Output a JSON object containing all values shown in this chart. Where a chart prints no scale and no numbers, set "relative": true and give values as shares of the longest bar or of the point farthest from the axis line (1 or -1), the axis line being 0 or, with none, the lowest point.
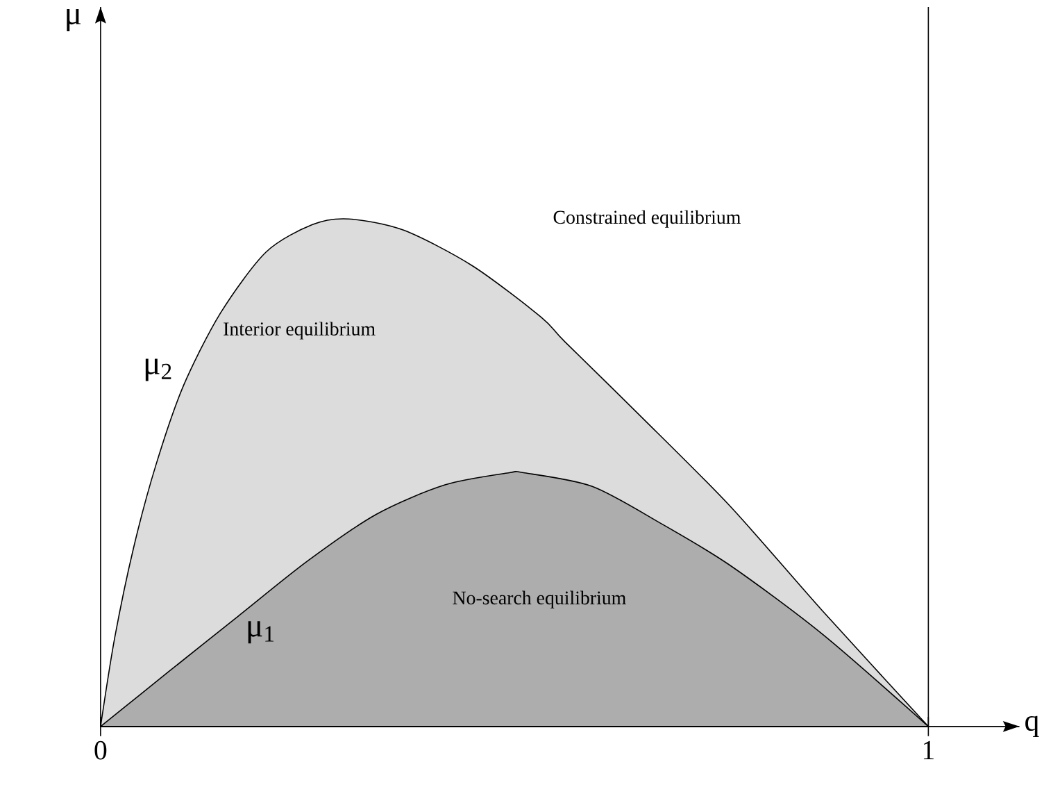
{
  "chart_data": {
    "type": "area",
    "relative": true,
    "xlabel": "q",
    "xlim": [
      0,
      1.11
    ],
    "xticks": [
      0,
      1
    ],
    "grid": false,
    "series": [
      {
        "name": "μ$_{2}$",
        "color": "#dcdcdc",
        "x": [
          0,
          0.017,
          0.04,
          0.067,
          0.1,
          0.145,
          0.2,
          0.256,
          0.3,
          0.366,
          0.449,
          0.532,
          0.561,
          0.649,
          0.76,
          0.872,
          1
        ],
        "values": [
          0,
          0.174,
          0.353,
          0.516,
          0.671,
          0.815,
          0.935,
          0.989,
          1,
          0.978,
          0.908,
          0.807,
          0.758,
          0.617,
          0.435,
          0.228,
          0
        ]
      },
      {
        "name": "μ$_{1}$",
        "color": "#adadad",
        "x": [
          0,
          0.083,
          0.166,
          0.25,
          0.333,
          0.416,
          0.494,
          0.511,
          0.594,
          0.677,
          0.76,
          0.872,
          1
        ],
        "values": [
          0,
          0.109,
          0.217,
          0.326,
          0.418,
          0.476,
          0.5,
          0.5,
          0.473,
          0.4,
          0.318,
          0.182,
          0
        ]
      }
    ],
    "ref_lines": [
      {
        "axis": "x",
        "value": 1,
        "color": "#000000"
      }
    ],
    "annotations": [
      "Constrained equilibrium",
      "Interior equilibrium",
      "No-search equilibrium",
      "μ"
    ]
  }
}
